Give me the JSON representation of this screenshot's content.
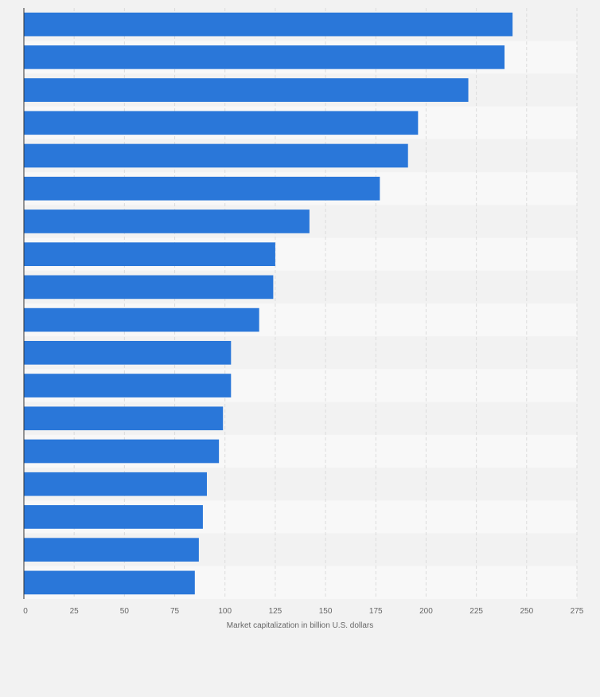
{
  "chart_data": {
    "type": "bar",
    "orientation": "horizontal",
    "values": [
      243,
      239,
      221,
      196,
      191,
      177,
      142,
      125,
      124,
      117,
      103,
      103,
      99,
      97,
      91,
      89,
      87,
      85
    ],
    "xlabel": "Market capitalization in billion U.S. dollars",
    "xlim": [
      0,
      275
    ],
    "ticks": [
      "0",
      "25",
      "50",
      "75",
      "100",
      "125",
      "150",
      "175",
      "200",
      "225",
      "250",
      "275"
    ],
    "grid": true,
    "bar_color": "#2a77d9",
    "row_color_alt": "#f2f2f2",
    "row_color": "#f8f8f8"
  }
}
